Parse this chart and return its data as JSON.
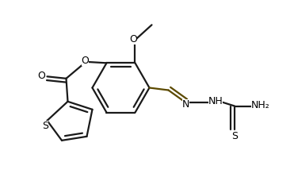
{
  "bg_color": "#ffffff",
  "line_color": "#1a1a1a",
  "bond_color": "#5c4a00",
  "text_color": "#000000",
  "line_width": 1.6,
  "font_size": 9,
  "figsize": [
    3.71,
    2.43
  ],
  "dpi": 100,
  "xlim": [
    0,
    7.42
  ],
  "ylim": [
    0,
    4.86
  ]
}
